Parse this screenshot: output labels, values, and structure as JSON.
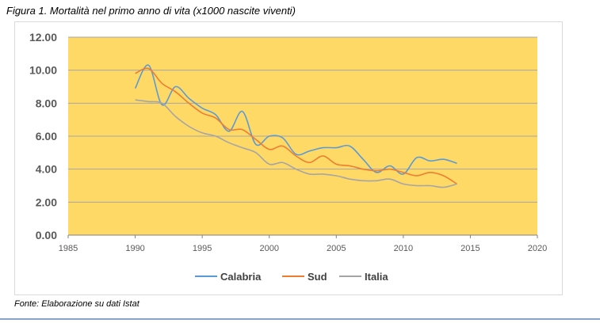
{
  "caption": "Figura 1. Mortalità nel primo anno di vita (x1000 nascite viventi)",
  "source": "Fonte: Elaborazione  su dati Istat",
  "chart_data": {
    "type": "line",
    "title": "",
    "xlabel": "",
    "ylabel": "",
    "xlim": [
      1985,
      2020
    ],
    "ylim": [
      0,
      12
    ],
    "x_ticks": [
      "1985",
      "1990",
      "1995",
      "2000",
      "2005",
      "2010",
      "2015",
      "2020"
    ],
    "y_ticks": [
      "0.00",
      "2.00",
      "4.00",
      "6.00",
      "8.00",
      "10.00",
      "12.00"
    ],
    "grid": true,
    "plot_background": "#ffd966",
    "legend_position": "bottom",
    "series": [
      {
        "name": "Calabria",
        "color": "#5b9bd5",
        "x": [
          1990,
          1991,
          1992,
          1993,
          1994,
          1995,
          1996,
          1997,
          1998,
          1999,
          2000,
          2001,
          2002,
          2003,
          2004,
          2005,
          2006,
          2007,
          2008,
          2009,
          2010,
          2011,
          2012,
          2013,
          2014
        ],
        "y": [
          8.9,
          10.3,
          7.9,
          9.0,
          8.3,
          7.7,
          7.3,
          6.3,
          7.5,
          5.5,
          6.0,
          5.9,
          4.9,
          5.1,
          5.3,
          5.3,
          5.4,
          4.6,
          3.8,
          4.2,
          3.7,
          4.7,
          4.5,
          4.6,
          4.35
        ]
      },
      {
        "name": "Sud",
        "color": "#ed7d31",
        "x": [
          1990,
          1991,
          1992,
          1993,
          1994,
          1995,
          1996,
          1997,
          1998,
          1999,
          2000,
          2001,
          2002,
          2003,
          2004,
          2005,
          2006,
          2007,
          2008,
          2009,
          2010,
          2011,
          2012,
          2013,
          2014
        ],
        "y": [
          9.8,
          10.1,
          9.2,
          8.7,
          8.0,
          7.4,
          7.1,
          6.4,
          6.4,
          5.8,
          5.2,
          5.4,
          4.8,
          4.4,
          4.8,
          4.3,
          4.2,
          4.0,
          3.9,
          4.0,
          3.8,
          3.6,
          3.8,
          3.6,
          3.1
        ]
      },
      {
        "name": "Italia",
        "color": "#a5a5a5",
        "x": [
          1990,
          1991,
          1992,
          1993,
          1994,
          1995,
          1996,
          1997,
          1998,
          1999,
          2000,
          2001,
          2002,
          2003,
          2004,
          2005,
          2006,
          2007,
          2008,
          2009,
          2010,
          2011,
          2012,
          2013,
          2014
        ],
        "y": [
          8.2,
          8.1,
          8.0,
          7.2,
          6.6,
          6.2,
          6.0,
          5.6,
          5.3,
          5.0,
          4.3,
          4.4,
          4.0,
          3.7,
          3.7,
          3.6,
          3.4,
          3.3,
          3.3,
          3.4,
          3.1,
          3.0,
          3.0,
          2.9,
          3.1
        ]
      }
    ]
  }
}
